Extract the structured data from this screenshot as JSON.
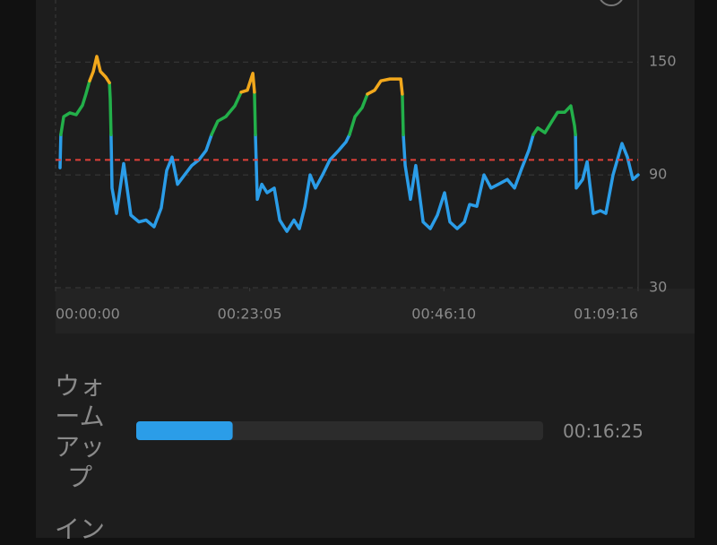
{
  "chart_data": {
    "type": "line",
    "xlim": [
      0,
      4156
    ],
    "xticks": [
      {
        "value": 0,
        "label": "00:00:00"
      },
      {
        "value": 1385,
        "label": "00:23:05"
      },
      {
        "value": 2770,
        "label": "00:46:10"
      },
      {
        "value": 4156,
        "label": "01:09:16"
      }
    ],
    "ylim": [
      30,
      183
    ],
    "yticks": [
      30,
      90,
      150
    ],
    "grid": true,
    "reference_line": {
      "value": 98,
      "color": "#e0413a"
    },
    "series": [
      {
        "color": "#2b9de8",
        "x": [
          32,
          38,
          null,
          396,
          403,
          435,
          486,
          537,
          595,
          646,
          703,
          754,
          793,
          831,
          870,
          921,
          972,
          1023,
          1074,
          1113,
          null,
          1426,
          1439,
          1471,
          1509,
          1560,
          1599,
          1650,
          1701,
          1739,
          1778,
          1816,
          1854,
          1905,
          1957,
          2020,
          2072,
          2097,
          null,
          2481,
          2494,
          2532,
          2570,
          2622,
          2673,
          2724,
          2775,
          2813,
          2865,
          2916,
          2954,
          3005,
          3056,
          3107,
          3159,
          3223,
          3274,
          3325,
          3376,
          3408,
          null,
          3709,
          3715,
          3760,
          3792,
          3836,
          3887,
          3926,
          3977,
          4041,
          4079,
          4118,
          4156
        ],
        "values": [
          93.8,
          111.4,
          null,
          111.4,
          83,
          69.5,
          96,
          68.6,
          65,
          66,
          62.4,
          72.4,
          92.4,
          99.5,
          85,
          90,
          95,
          98,
          103,
          111.4,
          null,
          111.4,
          77,
          85,
          80.5,
          83,
          66,
          60,
          66,
          61.4,
          73,
          90,
          83,
          90,
          98,
          103,
          107.6,
          111.4,
          null,
          111.4,
          95,
          77,
          95,
          65,
          61.4,
          68.6,
          80.5,
          65,
          61.4,
          65,
          74.3,
          73.3,
          90,
          83,
          85,
          87.6,
          83,
          93.3,
          103,
          111.4,
          null,
          111.4,
          83,
          87.6,
          97,
          69.5,
          71,
          69.5,
          90,
          106.7,
          99.5,
          87.6,
          90
        ]
      },
      {
        "color": "#23b04a",
        "x": [
          38,
          58,
          102,
          147,
          192,
          217,
          243,
          null,
          384,
          390,
          396,
          null,
          1113,
          1157,
          1215,
          1279,
          1324,
          null,
          1419,
          1426,
          null,
          2097,
          2136,
          2187,
          2225,
          null,
          2474,
          2481,
          null,
          3408,
          3440,
          3491,
          3542,
          3581,
          3632,
          3676,
          3702,
          3709
        ],
        "values": [
          111.4,
          121,
          123,
          122,
          127,
          133,
          140,
          null,
          139,
          130.5,
          111.4,
          null,
          111.4,
          118.6,
          121,
          126.7,
          134,
          null,
          134,
          111.4,
          null,
          111.4,
          121,
          125.7,
          133,
          null,
          133,
          111.4,
          null,
          111.4,
          115,
          112.4,
          118.6,
          123.3,
          123.3,
          126.7,
          116.2,
          111.4
        ]
      },
      {
        "color": "#f2a81c",
        "x": [
          243,
          269,
          294,
          320,
          358,
          384,
          null,
          1324,
          1368,
          1407,
          1419,
          null,
          2225,
          2276,
          2321,
          2385,
          2462,
          2474
        ],
        "values": [
          140,
          145,
          153,
          145,
          142,
          139,
          null,
          134,
          135,
          144,
          134,
          null,
          133,
          135,
          140,
          141,
          141,
          133
        ]
      }
    ]
  },
  "zones": [
    {
      "label": "ウォームアップ",
      "time": "00:16:25",
      "seconds": 985,
      "color": "#2b9de8"
    },
    {
      "label": "イン"
    }
  ]
}
